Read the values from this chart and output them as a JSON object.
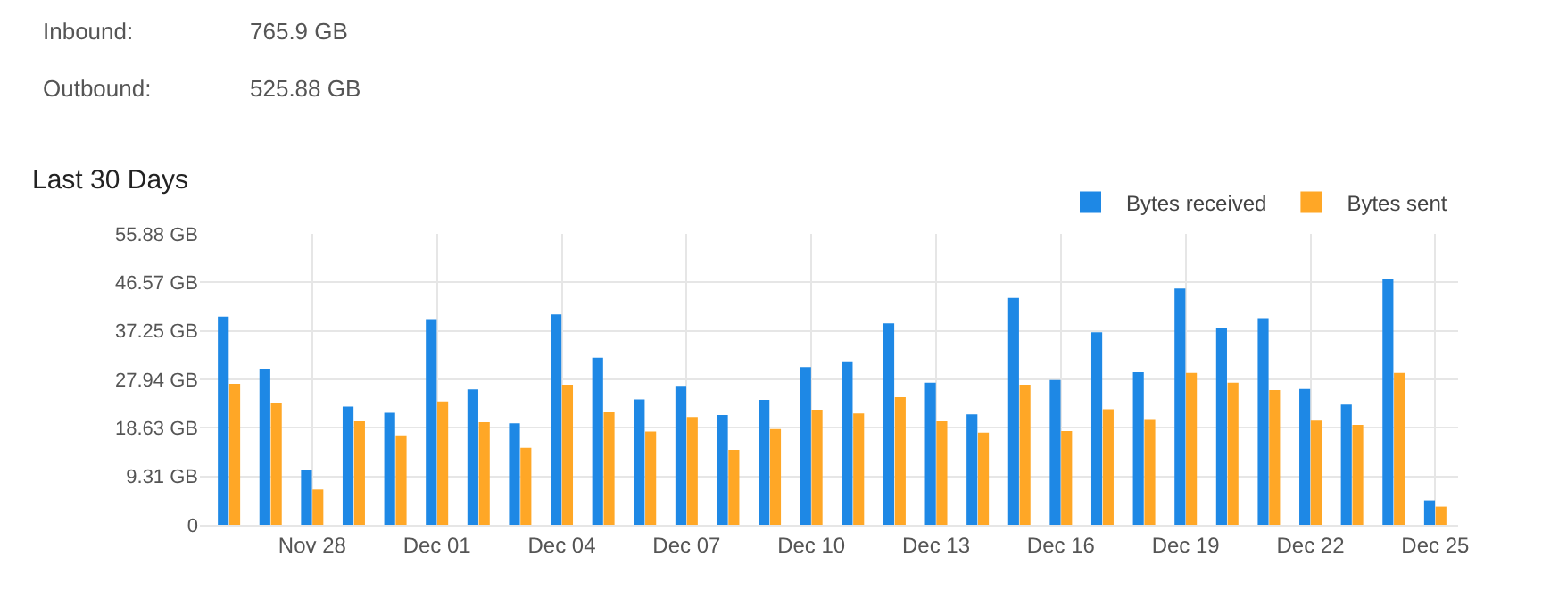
{
  "chart_data": {
    "type": "bar",
    "title": "Last 30 Days",
    "annotations": [
      "Inbound:",
      "765.9 GB",
      "Outbound:",
      "525.88 GB"
    ],
    "categories": [
      null,
      null,
      "Nov 28",
      null,
      null,
      "Dec 01",
      null,
      null,
      "Dec 04",
      null,
      null,
      "Dec 07",
      null,
      null,
      "Dec 10",
      null,
      null,
      "Dec 13",
      null,
      null,
      "Dec 16",
      null,
      null,
      "Dec 19",
      null,
      null,
      "Dec 22",
      null,
      null,
      "Dec 25"
    ],
    "series": [
      {
        "name": "Bytes received",
        "color": "#1e88e5",
        "values": [
          40.0,
          30.0,
          10.6,
          22.7,
          21.5,
          39.5,
          26.0,
          19.5,
          40.4,
          32.1,
          24.1,
          26.7,
          21.1,
          24.0,
          30.3,
          31.4,
          38.7,
          27.3,
          21.2,
          43.6,
          27.8,
          37.0,
          29.3,
          45.4,
          37.8,
          39.7,
          26.1,
          23.1,
          47.3,
          4.7
        ]
      },
      {
        "name": "Bytes sent",
        "color": "#ffa726",
        "values": [
          27.1,
          23.4,
          6.8,
          19.9,
          17.2,
          23.7,
          19.7,
          14.8,
          26.9,
          21.7,
          17.9,
          20.7,
          14.4,
          18.4,
          22.1,
          21.4,
          24.5,
          19.9,
          17.7,
          26.9,
          18.0,
          22.2,
          20.3,
          29.2,
          27.3,
          25.9,
          20.0,
          19.2,
          29.2,
          3.5
        ]
      }
    ],
    "ylim": [
      0,
      55.88
    ],
    "yticks": [
      0,
      {
        "value": 9.31,
        "label": "9.31 GB"
      },
      {
        "value": 18.63,
        "label": "18.63 GB"
      },
      {
        "value": 27.94,
        "label": "27.94 GB"
      },
      {
        "value": 37.25,
        "label": "37.25 GB"
      },
      {
        "value": 46.57,
        "label": "46.57 GB"
      },
      {
        "value": 55.88,
        "label": "55.88 GB"
      }
    ],
    "grid": true,
    "legend": "top right"
  }
}
